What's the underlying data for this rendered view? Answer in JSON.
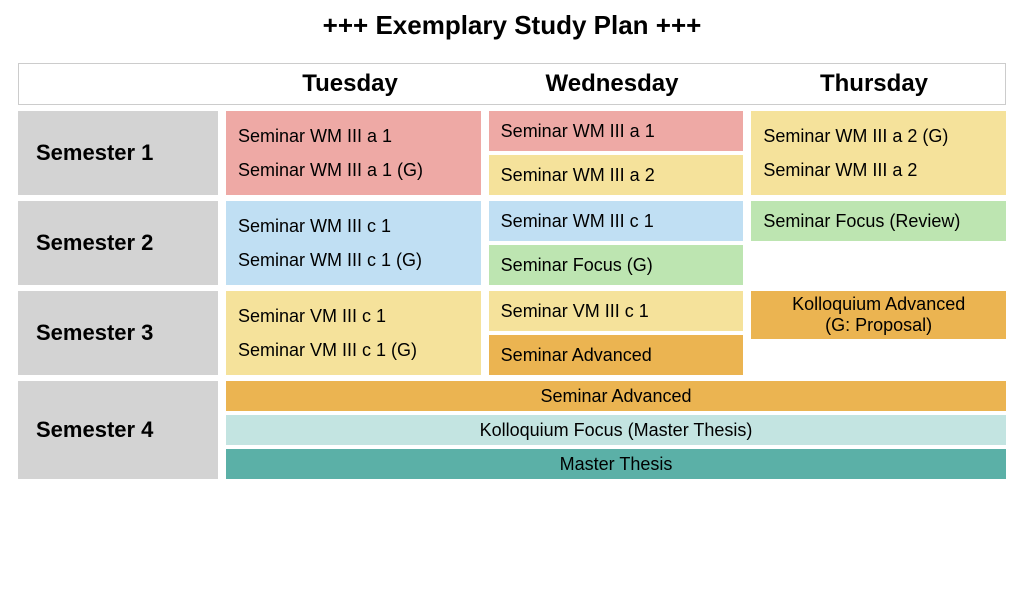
{
  "title": "+++ Exemplary Study Plan +++",
  "header": {
    "days": [
      "Tuesday",
      "Wednesday",
      "Thursday"
    ]
  },
  "colors": {
    "pink": "#eea9a5",
    "yellow": "#f5e29b",
    "blue": "#c0dff3",
    "green": "#bde5b1",
    "orange": "#ebb451",
    "teal_lt": "#c3e4e1",
    "teal": "#5bb0a7",
    "grey": "#d3d3d3",
    "text": "#000000",
    "bg": "#ffffff"
  },
  "fontsizes": {
    "title": 26,
    "header": 24,
    "label": 22,
    "block": 18
  },
  "semesters": [
    {
      "label": "Semester 1",
      "days": [
        {
          "blocks": [
            {
              "text": "Seminar WM III a 1",
              "color": "pink",
              "height": 40
            },
            {
              "text": "Seminar WM III a 1 (G)",
              "color": "pink",
              "height": 40
            }
          ],
          "merged": true
        },
        {
          "blocks": [
            {
              "text": "Seminar WM III a 1",
              "color": "pink",
              "height": 40
            },
            {
              "text": "Seminar WM III a 2",
              "color": "yellow",
              "height": 40
            }
          ]
        },
        {
          "blocks": [
            {
              "text": "Seminar WM III a 2 (G)",
              "color": "yellow",
              "height": 40
            },
            {
              "text": "Seminar WM III a 2",
              "color": "yellow",
              "height": 40
            }
          ],
          "merged": true
        }
      ]
    },
    {
      "label": "Semester 2",
      "days": [
        {
          "blocks": [
            {
              "text": "Seminar WM III c 1",
              "color": "blue",
              "height": 40
            },
            {
              "text": "Seminar WM III c 1 (G)",
              "color": "blue",
              "height": 40
            }
          ],
          "merged": true
        },
        {
          "blocks": [
            {
              "text": "Seminar WM III c 1",
              "color": "blue",
              "height": 40
            },
            {
              "text": "Seminar Focus (G)",
              "color": "green",
              "height": 40
            }
          ]
        },
        {
          "blocks": [
            {
              "text": "Seminar Focus (Review)",
              "color": "green",
              "height": 40
            }
          ]
        }
      ]
    },
    {
      "label": "Semester 3",
      "days": [
        {
          "blocks": [
            {
              "text": "Seminar VM III c 1",
              "color": "yellow",
              "height": 40
            },
            {
              "text": "Seminar VM III c 1 (G)",
              "color": "yellow",
              "height": 40
            }
          ],
          "merged": true
        },
        {
          "blocks": [
            {
              "text": "Seminar VM III c 1",
              "color": "yellow",
              "height": 40
            },
            {
              "text": "Seminar Advanced",
              "color": "orange",
              "height": 40
            }
          ]
        },
        {
          "blocks": [
            {
              "text": "Kolloquium Advanced\n(G: Proposal)",
              "color": "orange",
              "height": 48,
              "center": true
            }
          ]
        }
      ]
    },
    {
      "label": "Semester 4",
      "span": [
        {
          "text": "Seminar Advanced",
          "color": "orange",
          "height": 30
        },
        {
          "text": "Kolloquium Focus  (Master Thesis)",
          "color": "teal_lt",
          "height": 30
        },
        {
          "text": "Master Thesis",
          "color": "teal",
          "height": 30
        }
      ]
    }
  ]
}
